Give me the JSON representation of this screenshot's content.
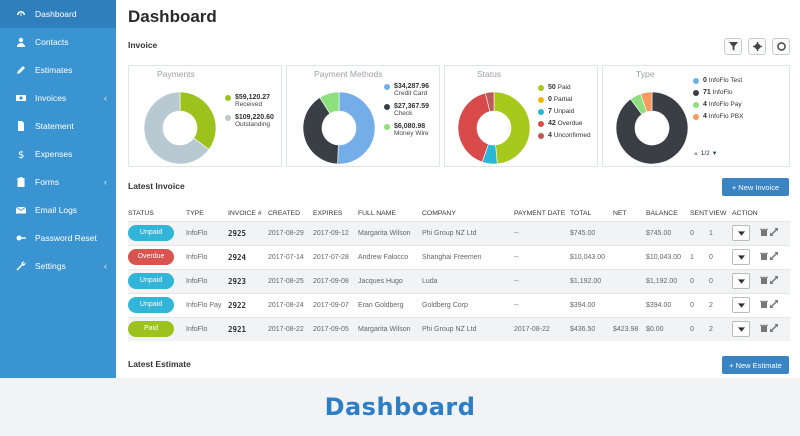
{
  "sidebar": {
    "items": [
      {
        "label": "Dashboard",
        "icon": "dashboard-icon",
        "active": true
      },
      {
        "label": "Contacts",
        "icon": "user-icon"
      },
      {
        "label": "Estimates",
        "icon": "pencil-icon"
      },
      {
        "label": "Invoices",
        "icon": "money-icon",
        "chevron": "‹"
      },
      {
        "label": "Statement",
        "icon": "document-icon"
      },
      {
        "label": "Expenses",
        "icon": "dollar-icon"
      },
      {
        "label": "Forms",
        "icon": "clipboard-icon",
        "chevron": "‹"
      },
      {
        "label": "Email Logs",
        "icon": "envelope-icon"
      },
      {
        "label": "Password Reset",
        "icon": "key-icon"
      },
      {
        "label": "Settings",
        "icon": "wrench-icon",
        "chevron": "‹"
      }
    ]
  },
  "page_title": "Dashboard",
  "invoice_section_label": "Invoice",
  "cards": {
    "payments": {
      "title": "Payments",
      "chart_data": {
        "type": "pie",
        "labels": [
          "Received",
          "Outstanding"
        ],
        "values": [
          59120.27,
          109220.6
        ],
        "colors": [
          "#9bc31c",
          "#b8c9d1"
        ]
      },
      "legend": [
        {
          "value": "$59,120.27",
          "label": "Received",
          "color": "#9bc31c"
        },
        {
          "value": "$109,220.60",
          "label": "Outstanding",
          "color": "#b8c9d1"
        }
      ]
    },
    "payment_methods": {
      "title": "Payment Methods",
      "chart_data": {
        "type": "pie",
        "labels": [
          "Credit Card",
          "Check",
          "Money Wire"
        ],
        "values": [
          34287.96,
          27367.59,
          6080.98
        ],
        "colors": [
          "#74aee8",
          "#3a3f46",
          "#8ee07e"
        ]
      },
      "legend": [
        {
          "value": "$34,287.96",
          "label": "Credit Card",
          "color": "#74aee8"
        },
        {
          "value": "$27,367.59",
          "label": "Check",
          "color": "#3a3f46"
        },
        {
          "value": "$6,080.98",
          "label": "Money Wire",
          "color": "#8ee07e"
        }
      ]
    },
    "status": {
      "title": "Status",
      "chart_data": {
        "type": "pie",
        "labels": [
          "Paid",
          "Partial",
          "Unpaid",
          "Overdue",
          "Unconfirmed"
        ],
        "values": [
          50,
          0,
          7,
          42,
          4
        ],
        "colors": [
          "#a6c91c",
          "#f2b705",
          "#2ab6d6",
          "#d94a4a",
          "#bb5a5a"
        ]
      },
      "legend": [
        {
          "value": "50",
          "label": "Paid",
          "color": "#a6c91c"
        },
        {
          "value": "0",
          "label": "Partial",
          "color": "#f2b705"
        },
        {
          "value": "7",
          "label": "Unpaid",
          "color": "#2ab6d6"
        },
        {
          "value": "42",
          "label": "Overdue",
          "color": "#d94a4a"
        },
        {
          "value": "4",
          "label": "Unconfirmed",
          "color": "#bb5a5a"
        }
      ]
    },
    "type": {
      "title": "Type",
      "chart_data": {
        "type": "pie",
        "labels": [
          "InfoFlo Test",
          "InfoFlo",
          "InfoFlo Pay",
          "InfoFlo PBX"
        ],
        "values": [
          0,
          71,
          4,
          4
        ],
        "colors": [
          "#6fb0ea",
          "#3a3f46",
          "#8ee07e",
          "#f79a5d"
        ]
      },
      "legend": [
        {
          "value": "0",
          "label": "InfoFlo Test",
          "color": "#6fb0ea"
        },
        {
          "value": "71",
          "label": "InfoFlo",
          "color": "#3a3f46"
        },
        {
          "value": "4",
          "label": "InfoFlo Pay",
          "color": "#8ee07e"
        },
        {
          "value": "4",
          "label": "InfoFlo PBX",
          "color": "#f79a5d"
        }
      ],
      "pager": "1/2"
    }
  },
  "latest_invoice_label": "Latest Invoice",
  "new_invoice_button": "+ New Invoice",
  "table": {
    "columns": [
      "STATUS",
      "TYPE",
      "INVOICE #",
      "CREATED",
      "EXPIRES",
      "FULL NAME",
      "COMPANY",
      "PAYMENT DATE",
      "TOTAL",
      "NET",
      "BALANCE",
      "SENT",
      "VIEW",
      "ACTION"
    ],
    "rows": [
      {
        "status": "Unpaid",
        "status_color": "#31b6d9",
        "type": "InfoFlo",
        "invoice": "2925",
        "created": "2017-08-29",
        "expires": "2017-09-12",
        "name": "Margarita Wilson",
        "company": "Phi Group NZ Ltd",
        "payment_date": "--",
        "total": "$745.00",
        "net": "",
        "balance": "$745.00",
        "sent": "0",
        "view": "1"
      },
      {
        "status": "Overdue",
        "status_color": "#d9534f",
        "type": "InfoFlo",
        "invoice": "2924",
        "created": "2017-07-14",
        "expires": "2017-07-28",
        "name": "Andrew Falocco",
        "company": "Shanghai Freemen",
        "payment_date": "--",
        "total": "$10,043.00",
        "net": "",
        "balance": "$10,043.00",
        "sent": "1",
        "view": "0"
      },
      {
        "status": "Unpaid",
        "status_color": "#31b6d9",
        "type": "InfoFlo",
        "invoice": "2923",
        "created": "2017-08-25",
        "expires": "2017-09-08",
        "name": "Jacques Hugo",
        "company": "Luda",
        "payment_date": "--",
        "total": "$1,192.00",
        "net": "",
        "balance": "$1,192.00",
        "sent": "0",
        "view": "0"
      },
      {
        "status": "Unpaid",
        "status_color": "#31b6d9",
        "type": "InfoFlo Pay",
        "invoice": "2922",
        "created": "2017-08-24",
        "expires": "2017-09-07",
        "name": "Eran Goldberg",
        "company": "Goldberg Corp",
        "payment_date": "--",
        "total": "$394.00",
        "net": "",
        "balance": "$394.00",
        "sent": "0",
        "view": "2"
      },
      {
        "status": "Paid",
        "status_color": "#9bc31c",
        "type": "InfoFlo",
        "invoice": "2921",
        "created": "2017-08-22",
        "expires": "2017-09-05",
        "name": "Margarita Wilson",
        "company": "Phi Group NZ Ltd",
        "payment_date": "2017-08-22",
        "total": "$436.50",
        "net": "$423.98",
        "balance": "$0.00",
        "sent": "0",
        "view": "2"
      }
    ]
  },
  "latest_estimate_label": "Latest Estimate",
  "new_estimate_button": "+ New Estimate",
  "footer_title": "Dashboard"
}
